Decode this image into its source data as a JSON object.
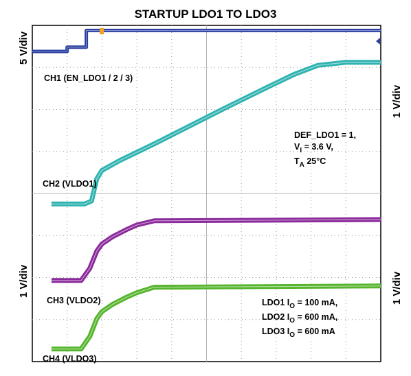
{
  "chart_data": {
    "type": "line",
    "title": "STARTUP LDO1 TO LDO3",
    "volts_per_div": {
      "ch1": "5 V/div",
      "ch2": "1 V/div",
      "ch3": "1 V/div",
      "ch4": "1 V/div"
    },
    "grid": true,
    "divisions": {
      "x": 10,
      "y": 8
    },
    "series": [
      {
        "name": "CH1 (EN_LDO1 / 2 / 3)",
        "color": "#2b3fa3",
        "x": [
          0,
          1.0,
          1.0,
          1.55,
          1.55,
          10
        ],
        "y": [
          7.38,
          7.38,
          7.48,
          7.48,
          7.88,
          7.88
        ]
      },
      {
        "name": "CH2 (VLDO1)",
        "color": "#2fb3b0",
        "x": [
          0.55,
          1.2,
          1.5,
          1.7,
          1.85,
          2.0,
          2.5,
          3.5,
          4.5,
          5.5,
          6.5,
          7.5,
          8.2,
          9.0,
          10
        ],
        "y": [
          3.75,
          3.75,
          3.75,
          3.82,
          4.35,
          4.55,
          4.78,
          5.18,
          5.6,
          6.02,
          6.43,
          6.83,
          7.05,
          7.12,
          7.12
        ]
      },
      {
        "name": "CH3 (VLDO2)",
        "color": "#8a2a9b",
        "x": [
          0.55,
          1.0,
          1.4,
          1.65,
          1.85,
          2.0,
          2.3,
          2.7,
          3.0,
          3.5,
          10
        ],
        "y": [
          1.93,
          1.93,
          1.93,
          2.22,
          2.63,
          2.8,
          2.97,
          3.14,
          3.25,
          3.35,
          3.38
        ]
      },
      {
        "name": "CH4 (VLDO3)",
        "color": "#56b52d",
        "x": [
          0.55,
          1.0,
          1.4,
          1.65,
          1.85,
          2.0,
          2.3,
          2.7,
          3.0,
          3.5,
          10
        ],
        "y": [
          0.3,
          0.3,
          0.3,
          0.6,
          1.02,
          1.19,
          1.36,
          1.53,
          1.64,
          1.77,
          1.8
        ]
      }
    ],
    "annotations": {
      "conditions": {
        "def": "DEF_LDO1 = 1,",
        "vi_main": "V",
        "vi_sub": "I",
        "vi_val": " = 3.6 V,",
        "ta_main": "T",
        "ta_sub": "A",
        "ta_val": "  25°C"
      },
      "loads": [
        {
          "pre": "LDO1 I",
          "sub": "O",
          "val": " = 100 mA,"
        },
        {
          "pre": "LDO2 I",
          "sub": "O",
          "val": " = 600 mA,"
        },
        {
          "pre": "LDO3 I",
          "sub": "O",
          "val": " = 600 mA"
        }
      ]
    }
  }
}
